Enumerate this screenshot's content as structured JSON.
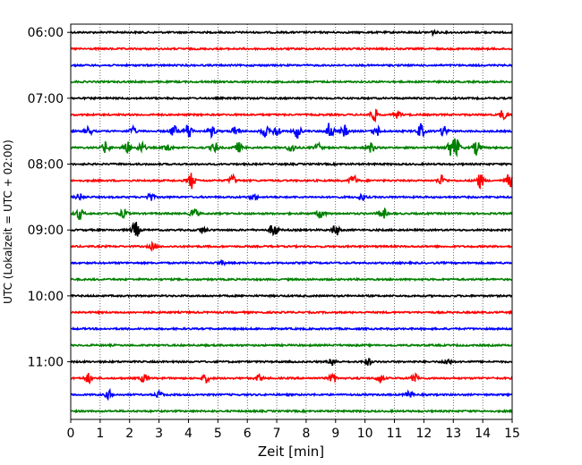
{
  "chart_data": {
    "type": "line",
    "title": "",
    "xlabel": "Zeit  [min]",
    "ylabel": "UTC (Lokalzeit = UTC + 02:00)",
    "x_ticks": [
      "0",
      "1",
      "2",
      "3",
      "4",
      "5",
      "6",
      "7",
      "8",
      "9",
      "10",
      "11",
      "12",
      "13",
      "14",
      "15"
    ],
    "xlim": [
      0,
      15
    ],
    "y_ticks": [
      "06:00",
      "07:00",
      "08:00",
      "09:00",
      "10:00",
      "11:00"
    ],
    "ylim_traces": [
      -0.5,
      23.5
    ],
    "grid": "vertical dotted at each minute",
    "colors": [
      "#000000",
      "#ff0000",
      "#0000ff",
      "#008000"
    ],
    "color_cycle": "black, red, blue, green per 15-min trace",
    "series": [
      {
        "start": "06:00",
        "color": "#000000",
        "bursts": [
          [
            12.3,
            0.12
          ]
        ]
      },
      {
        "start": "06:15",
        "color": "#ff0000",
        "bursts": []
      },
      {
        "start": "06:30",
        "color": "#0000ff",
        "bursts": []
      },
      {
        "start": "06:45",
        "color": "#008000",
        "bursts": []
      },
      {
        "start": "07:00",
        "color": "#000000",
        "bursts": []
      },
      {
        "start": "07:15",
        "color": "#ff0000",
        "bursts": [
          [
            10.3,
            0.4
          ],
          [
            11.1,
            0.2
          ],
          [
            14.7,
            0.3
          ]
        ]
      },
      {
        "start": "07:30",
        "color": "#0000ff",
        "bursts": [
          [
            0.6,
            0.25
          ],
          [
            2.1,
            0.25
          ],
          [
            3.5,
            0.35
          ],
          [
            4.0,
            0.5
          ],
          [
            4.8,
            0.3
          ],
          [
            5.6,
            0.3
          ],
          [
            6.6,
            0.35
          ],
          [
            7.0,
            0.35
          ],
          [
            7.7,
            0.4
          ],
          [
            8.8,
            0.55
          ],
          [
            9.3,
            0.35
          ],
          [
            10.4,
            0.3
          ],
          [
            11.9,
            0.45
          ],
          [
            12.7,
            0.35
          ]
        ]
      },
      {
        "start": "07:45",
        "color": "#008000",
        "bursts": [
          [
            1.2,
            0.35
          ],
          [
            1.9,
            0.4
          ],
          [
            2.4,
            0.3
          ],
          [
            3.3,
            0.25
          ],
          [
            4.9,
            0.3
          ],
          [
            5.7,
            0.3
          ],
          [
            7.5,
            0.3
          ],
          [
            8.4,
            0.25
          ],
          [
            10.2,
            0.3
          ],
          [
            12.9,
            0.45
          ],
          [
            13.1,
            0.55
          ],
          [
            13.8,
            0.45
          ]
        ]
      },
      {
        "start": "08:00",
        "color": "#000000",
        "bursts": []
      },
      {
        "start": "08:15",
        "color": "#ff0000",
        "bursts": [
          [
            4.1,
            0.5
          ],
          [
            5.5,
            0.3
          ],
          [
            9.6,
            0.35
          ],
          [
            12.6,
            0.3
          ],
          [
            13.9,
            0.45
          ],
          [
            14.9,
            0.4
          ]
        ]
      },
      {
        "start": "08:30",
        "color": "#0000ff",
        "bursts": [
          [
            0.3,
            0.2
          ],
          [
            2.7,
            0.25
          ],
          [
            6.2,
            0.2
          ],
          [
            9.9,
            0.2
          ]
        ]
      },
      {
        "start": "08:45",
        "color": "#008000",
        "bursts": [
          [
            0.3,
            0.35
          ],
          [
            1.8,
            0.25
          ],
          [
            4.2,
            0.3
          ],
          [
            8.5,
            0.3
          ],
          [
            10.6,
            0.35
          ]
        ]
      },
      {
        "start": "09:00",
        "color": "#000000",
        "bursts": [
          [
            2.2,
            0.5
          ],
          [
            6.9,
            0.4
          ],
          [
            9.0,
            0.35
          ],
          [
            4.5,
            0.2
          ]
        ]
      },
      {
        "start": "09:15",
        "color": "#ff0000",
        "bursts": [
          [
            2.8,
            0.2
          ]
        ]
      },
      {
        "start": "09:30",
        "color": "#0000ff",
        "bursts": [
          [
            5.1,
            0.15
          ]
        ]
      },
      {
        "start": "09:45",
        "color": "#008000",
        "bursts": []
      },
      {
        "start": "10:00",
        "color": "#000000",
        "bursts": []
      },
      {
        "start": "10:15",
        "color": "#ff0000",
        "bursts": []
      },
      {
        "start": "10:30",
        "color": "#0000ff",
        "bursts": []
      },
      {
        "start": "10:45",
        "color": "#008000",
        "bursts": []
      },
      {
        "start": "11:00",
        "color": "#000000",
        "bursts": [
          [
            8.9,
            0.25
          ],
          [
            10.1,
            0.2
          ],
          [
            12.8,
            0.2
          ]
        ]
      },
      {
        "start": "11:15",
        "color": "#ff0000",
        "bursts": [
          [
            0.6,
            0.3
          ],
          [
            2.5,
            0.25
          ],
          [
            4.6,
            0.25
          ],
          [
            6.4,
            0.2
          ],
          [
            8.9,
            0.25
          ],
          [
            10.5,
            0.25
          ],
          [
            11.7,
            0.25
          ]
        ]
      },
      {
        "start": "11:30",
        "color": "#0000ff",
        "bursts": [
          [
            1.3,
            0.25
          ],
          [
            3.0,
            0.2
          ],
          [
            11.5,
            0.2
          ]
        ]
      },
      {
        "start": "11:45",
        "color": "#008000",
        "bursts": []
      }
    ]
  }
}
